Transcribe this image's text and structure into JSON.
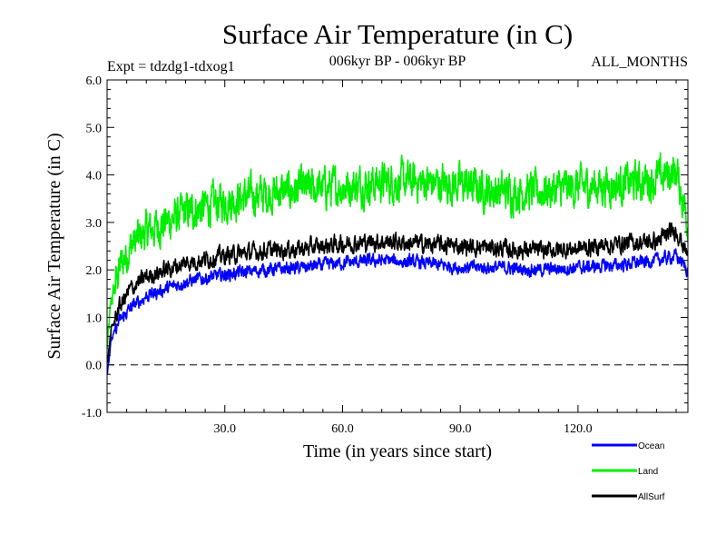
{
  "chart_data": {
    "type": "line",
    "title": "Surface Air Temperature (in C)",
    "subtitle_left": "Expt = tdzdg1-tdxog1",
    "subtitle_center": "006kyr BP - 006kyr BP",
    "subtitle_right": "ALL_MONTHS",
    "xlabel": "Time (in years since start)",
    "ylabel": "Surface Air Temperature (in C)",
    "xlim": [
      0,
      148
    ],
    "ylim": [
      -1.0,
      6.0
    ],
    "xticks": [
      30,
      60,
      90,
      120
    ],
    "xtick_labels": [
      "30.0",
      "60.0",
      "90.0",
      "120.0"
    ],
    "yticks": [
      -1.0,
      0.0,
      1.0,
      2.0,
      3.0,
      4.0,
      5.0,
      6.0
    ],
    "ytick_labels": [
      "-1.0",
      "0.0",
      "1.0",
      "2.0",
      "3.0",
      "4.0",
      "5.0",
      "6.0"
    ],
    "reference_line": 0.0,
    "legend_position": "bottom-right, below plot",
    "series": [
      {
        "name": "Ocean",
        "color": "#0000ff",
        "approx_mean_by_year": [
          [
            0,
            -0.2
          ],
          [
            1,
            0.5
          ],
          [
            3,
            0.9
          ],
          [
            6,
            1.2
          ],
          [
            10,
            1.45
          ],
          [
            15,
            1.6
          ],
          [
            20,
            1.75
          ],
          [
            30,
            1.9
          ],
          [
            40,
            2.0
          ],
          [
            50,
            2.05
          ],
          [
            60,
            2.15
          ],
          [
            70,
            2.2
          ],
          [
            80,
            2.15
          ],
          [
            90,
            2.05
          ],
          [
            100,
            2.05
          ],
          [
            110,
            2.0
          ],
          [
            120,
            2.05
          ],
          [
            130,
            2.1
          ],
          [
            140,
            2.2
          ],
          [
            145,
            2.3
          ],
          [
            148,
            2.0
          ]
        ],
        "noise_amplitude": 0.15
      },
      {
        "name": "Land",
        "color": "#00ee00",
        "approx_mean_by_year": [
          [
            0,
            0.3
          ],
          [
            1,
            1.3
          ],
          [
            3,
            2.0
          ],
          [
            6,
            2.5
          ],
          [
            10,
            2.8
          ],
          [
            15,
            3.0
          ],
          [
            20,
            3.2
          ],
          [
            30,
            3.45
          ],
          [
            40,
            3.6
          ],
          [
            50,
            3.7
          ],
          [
            60,
            3.75
          ],
          [
            70,
            3.85
          ],
          [
            80,
            3.85
          ],
          [
            90,
            3.8
          ],
          [
            100,
            3.65
          ],
          [
            110,
            3.65
          ],
          [
            120,
            3.75
          ],
          [
            130,
            3.8
          ],
          [
            140,
            3.9
          ],
          [
            145,
            4.1
          ],
          [
            148,
            3.0
          ]
        ],
        "noise_amplitude": 0.45
      },
      {
        "name": "AllSurf",
        "color": "#000000",
        "approx_mean_by_year": [
          [
            0,
            0.0
          ],
          [
            1,
            0.7
          ],
          [
            3,
            1.2
          ],
          [
            6,
            1.6
          ],
          [
            10,
            1.85
          ],
          [
            15,
            2.0
          ],
          [
            20,
            2.15
          ],
          [
            30,
            2.3
          ],
          [
            40,
            2.4
          ],
          [
            50,
            2.45
          ],
          [
            60,
            2.55
          ],
          [
            70,
            2.6
          ],
          [
            80,
            2.55
          ],
          [
            90,
            2.5
          ],
          [
            100,
            2.45
          ],
          [
            110,
            2.4
          ],
          [
            120,
            2.45
          ],
          [
            130,
            2.55
          ],
          [
            140,
            2.6
          ],
          [
            145,
            2.85
          ],
          [
            148,
            2.3
          ]
        ],
        "noise_amplitude": 0.2
      }
    ]
  }
}
